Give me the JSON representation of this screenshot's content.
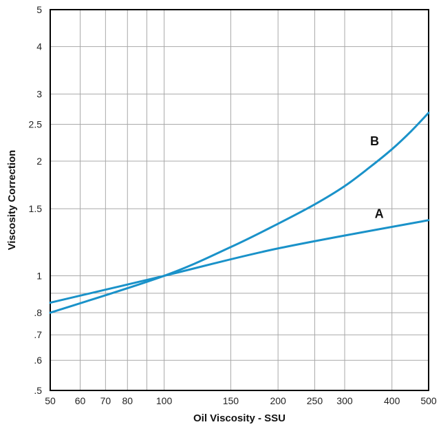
{
  "chart_data": {
    "type": "line",
    "xlabel": "Oil Viscosity - SSU",
    "ylabel": "Viscosity Correction",
    "x_scale": "log",
    "y_scale": "log",
    "xlim": [
      50,
      500
    ],
    "ylim": [
      0.5,
      5
    ],
    "grid": true,
    "x_ticks": [
      {
        "value": 50,
        "label": "50"
      },
      {
        "value": 60,
        "label": "60"
      },
      {
        "value": 70,
        "label": "70"
      },
      {
        "value": 80,
        "label": "80"
      },
      {
        "value": 100,
        "label": "100"
      },
      {
        "value": 150,
        "label": "150"
      },
      {
        "value": 200,
        "label": "200"
      },
      {
        "value": 250,
        "label": "250"
      },
      {
        "value": 300,
        "label": "300"
      },
      {
        "value": 400,
        "label": "400"
      },
      {
        "value": 500,
        "label": "500"
      }
    ],
    "x_minor_grid": [
      90
    ],
    "y_ticks": [
      {
        "value": 0.5,
        "label": ".5"
      },
      {
        "value": 0.6,
        "label": ".6"
      },
      {
        "value": 0.7,
        "label": ".7"
      },
      {
        "value": 0.8,
        "label": ".8"
      },
      {
        "value": 1,
        "label": "1"
      },
      {
        "value": 1.5,
        "label": "1.5"
      },
      {
        "value": 2,
        "label": "2"
      },
      {
        "value": 2.5,
        "label": "2.5"
      },
      {
        "value": 3,
        "label": "3"
      },
      {
        "value": 4,
        "label": "4"
      },
      {
        "value": 5,
        "label": "5"
      }
    ],
    "y_minor_grid": [
      0.9
    ],
    "series": [
      {
        "name": "A",
        "color": "#1a92c9",
        "x": [
          50,
          100,
          200,
          500
        ],
        "y": [
          0.85,
          1.0,
          1.18,
          1.4
        ],
        "label_at": [
          370,
          1.42
        ]
      },
      {
        "name": "B",
        "color": "#1a92c9",
        "x": [
          50,
          100,
          150,
          200,
          250,
          300,
          350,
          400,
          450,
          500
        ],
        "y": [
          0.8,
          1.0,
          1.19,
          1.37,
          1.54,
          1.72,
          1.93,
          2.15,
          2.4,
          2.68
        ],
        "label_at": [
          360,
          2.2
        ]
      }
    ]
  }
}
